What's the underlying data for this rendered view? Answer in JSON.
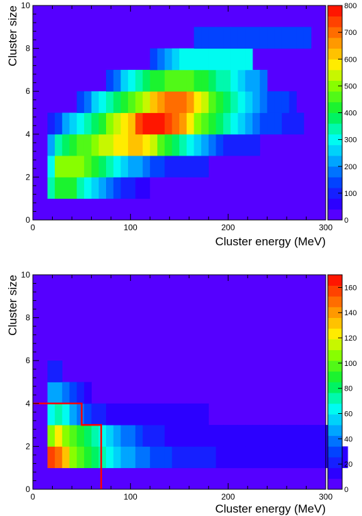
{
  "chart_data": [
    {
      "type": "heatmap",
      "xlabel": "Cluster energy (MeV)",
      "ylabel": "Cluster size",
      "xlim": [
        0,
        300
      ],
      "ylim": [
        0,
        10
      ],
      "xticks": [
        "0",
        "100",
        "200",
        "300"
      ],
      "yticks": [
        "0",
        "2",
        "4",
        "6",
        "8",
        "10"
      ],
      "zlim": [
        0,
        800
      ],
      "zticks": [
        "0",
        "100",
        "200",
        "300",
        "400",
        "500",
        "600",
        "700",
        "800"
      ],
      "x_bin_width": 7.5,
      "y_bin_width": 1,
      "rows": [
        {
          "y": 1,
          "x_start": 15,
          "values": [
            330,
            400,
            420,
            400,
            350,
            300,
            260,
            210,
            160,
            130,
            100,
            80,
            60,
            45,
            30,
            20
          ]
        },
        {
          "y": 2,
          "x_start": 15,
          "values": [
            300,
            480,
            480,
            480,
            480,
            470,
            420,
            380,
            330,
            300,
            260,
            230,
            200,
            160,
            150,
            120,
            110,
            100,
            100,
            100,
            90,
            90
          ]
        },
        {
          "y": 3,
          "x_start": 15,
          "values": [
            230,
            330,
            370,
            420,
            450,
            470,
            510,
            530,
            550,
            560,
            580,
            620,
            620,
            570,
            520,
            470,
            420,
            370,
            330,
            280,
            240,
            200,
            160,
            130,
            110,
            100,
            90,
            80,
            80
          ]
        },
        {
          "y": 4,
          "x_start": 15,
          "values": [
            100,
            150,
            200,
            260,
            300,
            330,
            360,
            420,
            480,
            530,
            560,
            620,
            720,
            780,
            800,
            780,
            750,
            700,
            640,
            560,
            500,
            460,
            410,
            360,
            320,
            280,
            240,
            200,
            170,
            150,
            130,
            120,
            110,
            100,
            100
          ]
        },
        {
          "y": 5,
          "x_start": 45,
          "values": [
            120,
            180,
            240,
            280,
            330,
            370,
            420,
            460,
            500,
            550,
            600,
            660,
            690,
            690,
            680,
            640,
            570,
            520,
            470,
            420,
            370,
            330,
            280,
            240,
            200,
            170,
            150,
            130,
            120,
            110
          ]
        },
        {
          "y": 6,
          "x_start": 75,
          "values": [
            120,
            180,
            240,
            280,
            320,
            360,
            400,
            430,
            450,
            460,
            460,
            440,
            420,
            400,
            380,
            350,
            320,
            290,
            260,
            230,
            210,
            190
          ]
        },
        {
          "y": 7,
          "x_start": 120,
          "values": [
            150,
            180,
            220,
            260,
            290,
            300,
            300,
            300,
            300,
            300,
            300,
            300,
            300,
            280
          ]
        },
        {
          "y": 8,
          "x_start": 165,
          "values": [
            150,
            150,
            150,
            150,
            150,
            150,
            150,
            150,
            150,
            150,
            150,
            150,
            150,
            150,
            150,
            150
          ]
        }
      ]
    },
    {
      "type": "heatmap",
      "xlabel": "Cluster energy (MeV)",
      "ylabel": "Cluster size",
      "xlim": [
        0,
        300
      ],
      "ylim": [
        0,
        10
      ],
      "xticks": [
        "0",
        "100",
        "200",
        "300"
      ],
      "yticks": [
        "0",
        "2",
        "4",
        "6",
        "8",
        "10"
      ],
      "zlim": [
        0,
        170
      ],
      "zticks": [
        "0",
        "20",
        "40",
        "60",
        "80",
        "100",
        "120",
        "140",
        "160"
      ],
      "x_bin_width": 7.5,
      "y_bin_width": 1,
      "rows": [
        {
          "y": 1,
          "x_start": 15,
          "values": [
            160,
            150,
            130,
            110,
            100,
            90,
            80,
            70,
            60,
            55,
            50,
            45,
            40,
            35,
            30,
            30,
            30,
            25,
            20,
            20,
            20,
            20,
            20,
            15,
            15,
            15,
            15,
            15,
            15,
            15,
            15,
            15,
            15,
            15,
            10,
            10,
            10,
            10,
            10,
            10,
            10
          ]
        },
        {
          "y": 2,
          "x_start": 15,
          "values": [
            110,
            120,
            110,
            100,
            90,
            80,
            70,
            60,
            55,
            50,
            40,
            35,
            30,
            25,
            20,
            20,
            15,
            15,
            15,
            15,
            15,
            15,
            12,
            12,
            12,
            12,
            12,
            12,
            12,
            12,
            12,
            12,
            12,
            12,
            12,
            12,
            12,
            12,
            12,
            12
          ]
        },
        {
          "y": 3,
          "x_start": 15,
          "values": [
            60,
            70,
            60,
            45,
            35,
            30,
            25,
            20,
            15,
            15,
            15,
            12,
            12,
            12,
            12,
            12,
            10,
            10,
            10,
            10,
            10,
            10
          ]
        },
        {
          "y": 4,
          "x_start": 15,
          "values": [
            50,
            50,
            40,
            30,
            20,
            15
          ]
        },
        {
          "y": 5,
          "x_start": 15,
          "values": [
            20,
            20
          ]
        }
      ],
      "cut_line": {
        "color": "#ff0000",
        "points": [
          [
            0,
            4
          ],
          [
            50,
            4
          ],
          [
            50,
            3
          ],
          [
            70,
            3
          ],
          [
            70,
            0
          ]
        ]
      }
    }
  ]
}
